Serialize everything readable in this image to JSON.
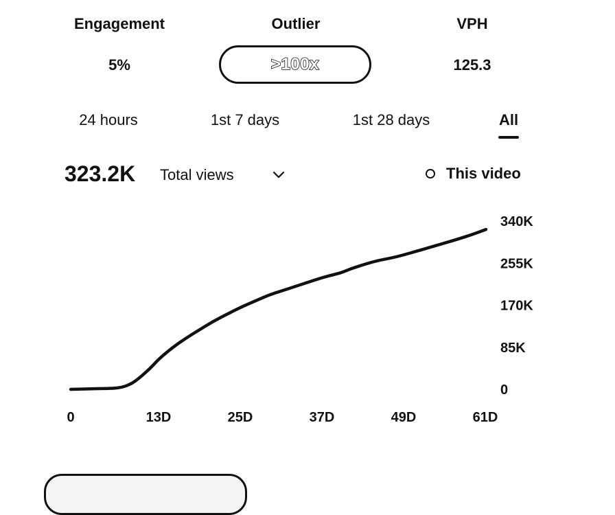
{
  "stats": {
    "engagement": {
      "label": "Engagement",
      "value": "5%"
    },
    "outlier": {
      "label": "Outlier",
      "value": ">100x"
    },
    "vph": {
      "label": "VPH",
      "value": "125.3"
    }
  },
  "tabs": [
    {
      "label": "24 hours",
      "active": false
    },
    {
      "label": "1st 7 days",
      "active": false
    },
    {
      "label": "1st 28 days",
      "active": false
    },
    {
      "label": "All",
      "active": true
    }
  ],
  "metric": {
    "value": "323.2K",
    "selected": "Total views",
    "dropdown_icon": "chevron-down-icon"
  },
  "legend": {
    "label": "This video",
    "marker_icon": "circle-outline-icon"
  },
  "colors": {
    "text": "#111111",
    "background": "#ffffff",
    "line": "#111111"
  },
  "chart_data": {
    "type": "line",
    "title": "",
    "xlabel": "",
    "ylabel": "",
    "x_unit": "days",
    "xlim": [
      0,
      61
    ],
    "ylim": [
      0,
      340000
    ],
    "x_ticks": [
      {
        "value": 0,
        "label": "0"
      },
      {
        "value": 13,
        "label": "13D"
      },
      {
        "value": 25,
        "label": "25D"
      },
      {
        "value": 37,
        "label": "37D"
      },
      {
        "value": 49,
        "label": "49D"
      },
      {
        "value": 61,
        "label": "61D"
      }
    ],
    "y_ticks": [
      {
        "value": 0,
        "label": "0"
      },
      {
        "value": 85000,
        "label": "85K"
      },
      {
        "value": 170000,
        "label": "170K"
      },
      {
        "value": 255000,
        "label": "255K"
      },
      {
        "value": 340000,
        "label": "340K"
      }
    ],
    "y_axis_side": "right",
    "grid": false,
    "legend_position": "top-right",
    "series": [
      {
        "name": "This video",
        "x": [
          0,
          3,
          6,
          7,
          8,
          9,
          10,
          11,
          12,
          13,
          15,
          17,
          19,
          21,
          23,
          25,
          27,
          29,
          31,
          33,
          35,
          37,
          39,
          40,
          41,
          43,
          45,
          47,
          49,
          51,
          53,
          55,
          57,
          59,
          61
        ],
        "y": [
          0,
          1000,
          2000,
          3000,
          6000,
          12000,
          22000,
          34000,
          47000,
          62000,
          85000,
          104000,
          121000,
          138000,
          152000,
          166000,
          178000,
          190000,
          199000,
          208000,
          217000,
          226000,
          233000,
          237000,
          243000,
          252000,
          260000,
          265000,
          272000,
          280000,
          288000,
          296000,
          304000,
          313000,
          323200
        ]
      }
    ]
  }
}
